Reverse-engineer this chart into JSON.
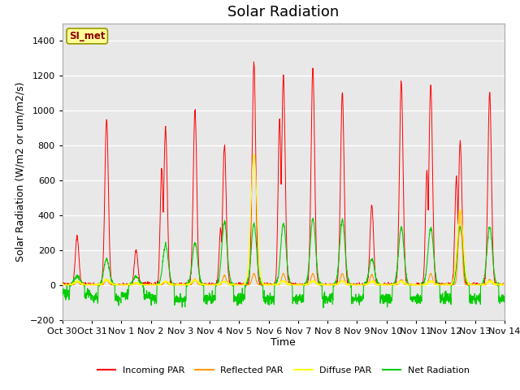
{
  "title": "Solar Radiation",
  "xlabel": "Time",
  "ylabel": "Solar Radiation (W/m2 or um/m2/s)",
  "ylim": [
    -200,
    1500
  ],
  "yticks": [
    -200,
    0,
    200,
    400,
    600,
    800,
    1000,
    1200,
    1400
  ],
  "xlim_start": 0,
  "xlim_end": 15,
  "xtick_labels": [
    "Oct 30",
    "Oct 31",
    "Nov 1",
    "Nov 2",
    "Nov 3",
    "Nov 4",
    "Nov 5",
    "Nov 6",
    "Nov 7",
    "Nov 8",
    "Nov 9",
    "Nov 10",
    "Nov 11",
    "Nov 12",
    "Nov 13",
    "Nov 14"
  ],
  "xtick_positions": [
    0,
    1,
    2,
    3,
    4,
    5,
    6,
    7,
    8,
    9,
    10,
    11,
    12,
    13,
    14,
    15
  ],
  "plot_bg_color": "#e8e8e8",
  "fig_bg_color": "#ffffff",
  "grid_color": "#ffffff",
  "colors": {
    "incoming": "#ff0000",
    "reflected": "#ff9900",
    "diffuse": "#ffff00",
    "net": "#00cc00"
  },
  "legend_labels": [
    "Incoming PAR",
    "Reflected PAR",
    "Diffuse PAR",
    "Net Radiation"
  ],
  "station_label": "SI_met",
  "title_fontsize": 13,
  "axis_fontsize": 9,
  "tick_fontsize": 8,
  "incoming_peaks": [
    280,
    950,
    200,
    900,
    1000,
    800,
    1270,
    1200,
    1250,
    1100,
    450,
    1170,
    1150,
    820,
    1100
  ],
  "incoming_peaks2": [
    0,
    0,
    0,
    670,
    0,
    320,
    0,
    950,
    0,
    0,
    0,
    0,
    650,
    620,
    0
  ],
  "reflected_peaks": [
    20,
    30,
    10,
    20,
    30,
    55,
    65,
    65,
    65,
    65,
    60,
    30,
    65,
    430,
    30
  ],
  "diffuse_peaks": [
    20,
    30,
    10,
    20,
    30,
    20,
    750,
    20,
    20,
    20,
    20,
    20,
    20,
    430,
    20
  ],
  "net_peaks": [
    50,
    150,
    50,
    230,
    240,
    360,
    350,
    350,
    380,
    370,
    150,
    330,
    330,
    330,
    330
  ],
  "net_night": [
    -50,
    -80,
    -60,
    -80,
    -80,
    -80,
    -80,
    -80,
    -80,
    -80,
    -80,
    -80,
    -80,
    -80,
    -80
  ]
}
